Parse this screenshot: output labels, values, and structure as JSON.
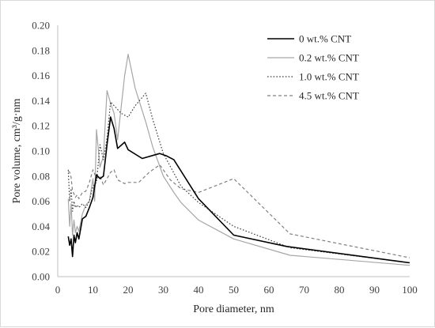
{
  "chart_data": {
    "type": "line",
    "xlabel": "Pore diameter, nm",
    "ylabel": "Pore volume, cm³/g·nm",
    "xlim": [
      0,
      100
    ],
    "ylim": [
      0,
      0.2
    ],
    "x_ticks": [
      "0",
      "10",
      "20",
      "30",
      "40",
      "50",
      "60",
      "70",
      "80",
      "90",
      "100"
    ],
    "y_ticks": [
      "0.00",
      "0.02",
      "0.04",
      "0.06",
      "0.08",
      "0.10",
      "0.12",
      "0.14",
      "0.16",
      "0.18",
      "0.20"
    ],
    "grid": false,
    "legend_position": "top-right",
    "series": [
      {
        "name": "0 wt.% CNT",
        "style": "solid-black",
        "color": "#000000",
        "points": [
          [
            3,
            0.032
          ],
          [
            3.4,
            0.025
          ],
          [
            3.8,
            0.03
          ],
          [
            4.2,
            0.016
          ],
          [
            4.6,
            0.033
          ],
          [
            5,
            0.027
          ],
          [
            5.5,
            0.035
          ],
          [
            6,
            0.03
          ],
          [
            7,
            0.046
          ],
          [
            8,
            0.048
          ],
          [
            9,
            0.055
          ],
          [
            10,
            0.063
          ],
          [
            11,
            0.081
          ],
          [
            12,
            0.078
          ],
          [
            13,
            0.08
          ],
          [
            14,
            0.105
          ],
          [
            15,
            0.127
          ],
          [
            16,
            0.118
          ],
          [
            17,
            0.102
          ],
          [
            19,
            0.107
          ],
          [
            20,
            0.101
          ],
          [
            24,
            0.094
          ],
          [
            29,
            0.098
          ],
          [
            31,
            0.096
          ],
          [
            33,
            0.093
          ],
          [
            40,
            0.062
          ],
          [
            50,
            0.033
          ],
          [
            65,
            0.024
          ],
          [
            100,
            0.011
          ]
        ]
      },
      {
        "name": "0.2 wt.% CNT",
        "style": "solid-gray",
        "color": "#a6a6a6",
        "points": [
          [
            3,
            0.062
          ],
          [
            3.4,
            0.04
          ],
          [
            3.8,
            0.058
          ],
          [
            4.2,
            0.033
          ],
          [
            4.6,
            0.045
          ],
          [
            5,
            0.035
          ],
          [
            5.5,
            0.04
          ],
          [
            6,
            0.036
          ],
          [
            7,
            0.05
          ],
          [
            8,
            0.057
          ],
          [
            9,
            0.06
          ],
          [
            10,
            0.078
          ],
          [
            10.5,
            0.06
          ],
          [
            11,
            0.117
          ],
          [
            12,
            0.087
          ],
          [
            13,
            0.096
          ],
          [
            14,
            0.148
          ],
          [
            15,
            0.138
          ],
          [
            16,
            0.13
          ],
          [
            17,
            0.109
          ],
          [
            19,
            0.16
          ],
          [
            20,
            0.177
          ],
          [
            22,
            0.15
          ],
          [
            25,
            0.123
          ],
          [
            27,
            0.103
          ],
          [
            30,
            0.08
          ],
          [
            33,
            0.067
          ],
          [
            35,
            0.059
          ],
          [
            40,
            0.045
          ],
          [
            50,
            0.03
          ],
          [
            66,
            0.017
          ],
          [
            100,
            0.009
          ]
        ]
      },
      {
        "name": "1.0 wt.% CNT",
        "style": "dotted",
        "color": "#404040",
        "points": [
          [
            3,
            0.085
          ],
          [
            3.4,
            0.06
          ],
          [
            3.8,
            0.07
          ],
          [
            4.2,
            0.052
          ],
          [
            4.6,
            0.06
          ],
          [
            5,
            0.055
          ],
          [
            5.5,
            0.057
          ],
          [
            6,
            0.055
          ],
          [
            7,
            0.058
          ],
          [
            8,
            0.055
          ],
          [
            9,
            0.06
          ],
          [
            10,
            0.072
          ],
          [
            11,
            0.075
          ],
          [
            12,
            0.105
          ],
          [
            13,
            0.093
          ],
          [
            14,
            0.11
          ],
          [
            15,
            0.139
          ],
          [
            17,
            0.133
          ],
          [
            18,
            0.13
          ],
          [
            20,
            0.127
          ],
          [
            22,
            0.136
          ],
          [
            25,
            0.146
          ],
          [
            27,
            0.125
          ],
          [
            30,
            0.098
          ],
          [
            35,
            0.072
          ],
          [
            40,
            0.059
          ],
          [
            50,
            0.04
          ],
          [
            66,
            0.023
          ],
          [
            100,
            0.011
          ]
        ]
      },
      {
        "name": "4.5 wt.% CNT",
        "style": "dashed",
        "color": "#808080",
        "points": [
          [
            3,
            0.084
          ],
          [
            3.4,
            0.083
          ],
          [
            3.8,
            0.079
          ],
          [
            4.2,
            0.068
          ],
          [
            4.6,
            0.066
          ],
          [
            5,
            0.063
          ],
          [
            5.5,
            0.065
          ],
          [
            6,
            0.062
          ],
          [
            7,
            0.067
          ],
          [
            8,
            0.068
          ],
          [
            9,
            0.075
          ],
          [
            10,
            0.085
          ],
          [
            11,
            0.078
          ],
          [
            12,
            0.08
          ],
          [
            13,
            0.073
          ],
          [
            14,
            0.078
          ],
          [
            15,
            0.083
          ],
          [
            16,
            0.085
          ],
          [
            17,
            0.077
          ],
          [
            19,
            0.074
          ],
          [
            20,
            0.075
          ],
          [
            23,
            0.075
          ],
          [
            26,
            0.083
          ],
          [
            29,
            0.089
          ],
          [
            32,
            0.077
          ],
          [
            35,
            0.07
          ],
          [
            40,
            0.067
          ],
          [
            50,
            0.078
          ],
          [
            66,
            0.034
          ],
          [
            100,
            0.015
          ]
        ]
      }
    ]
  }
}
